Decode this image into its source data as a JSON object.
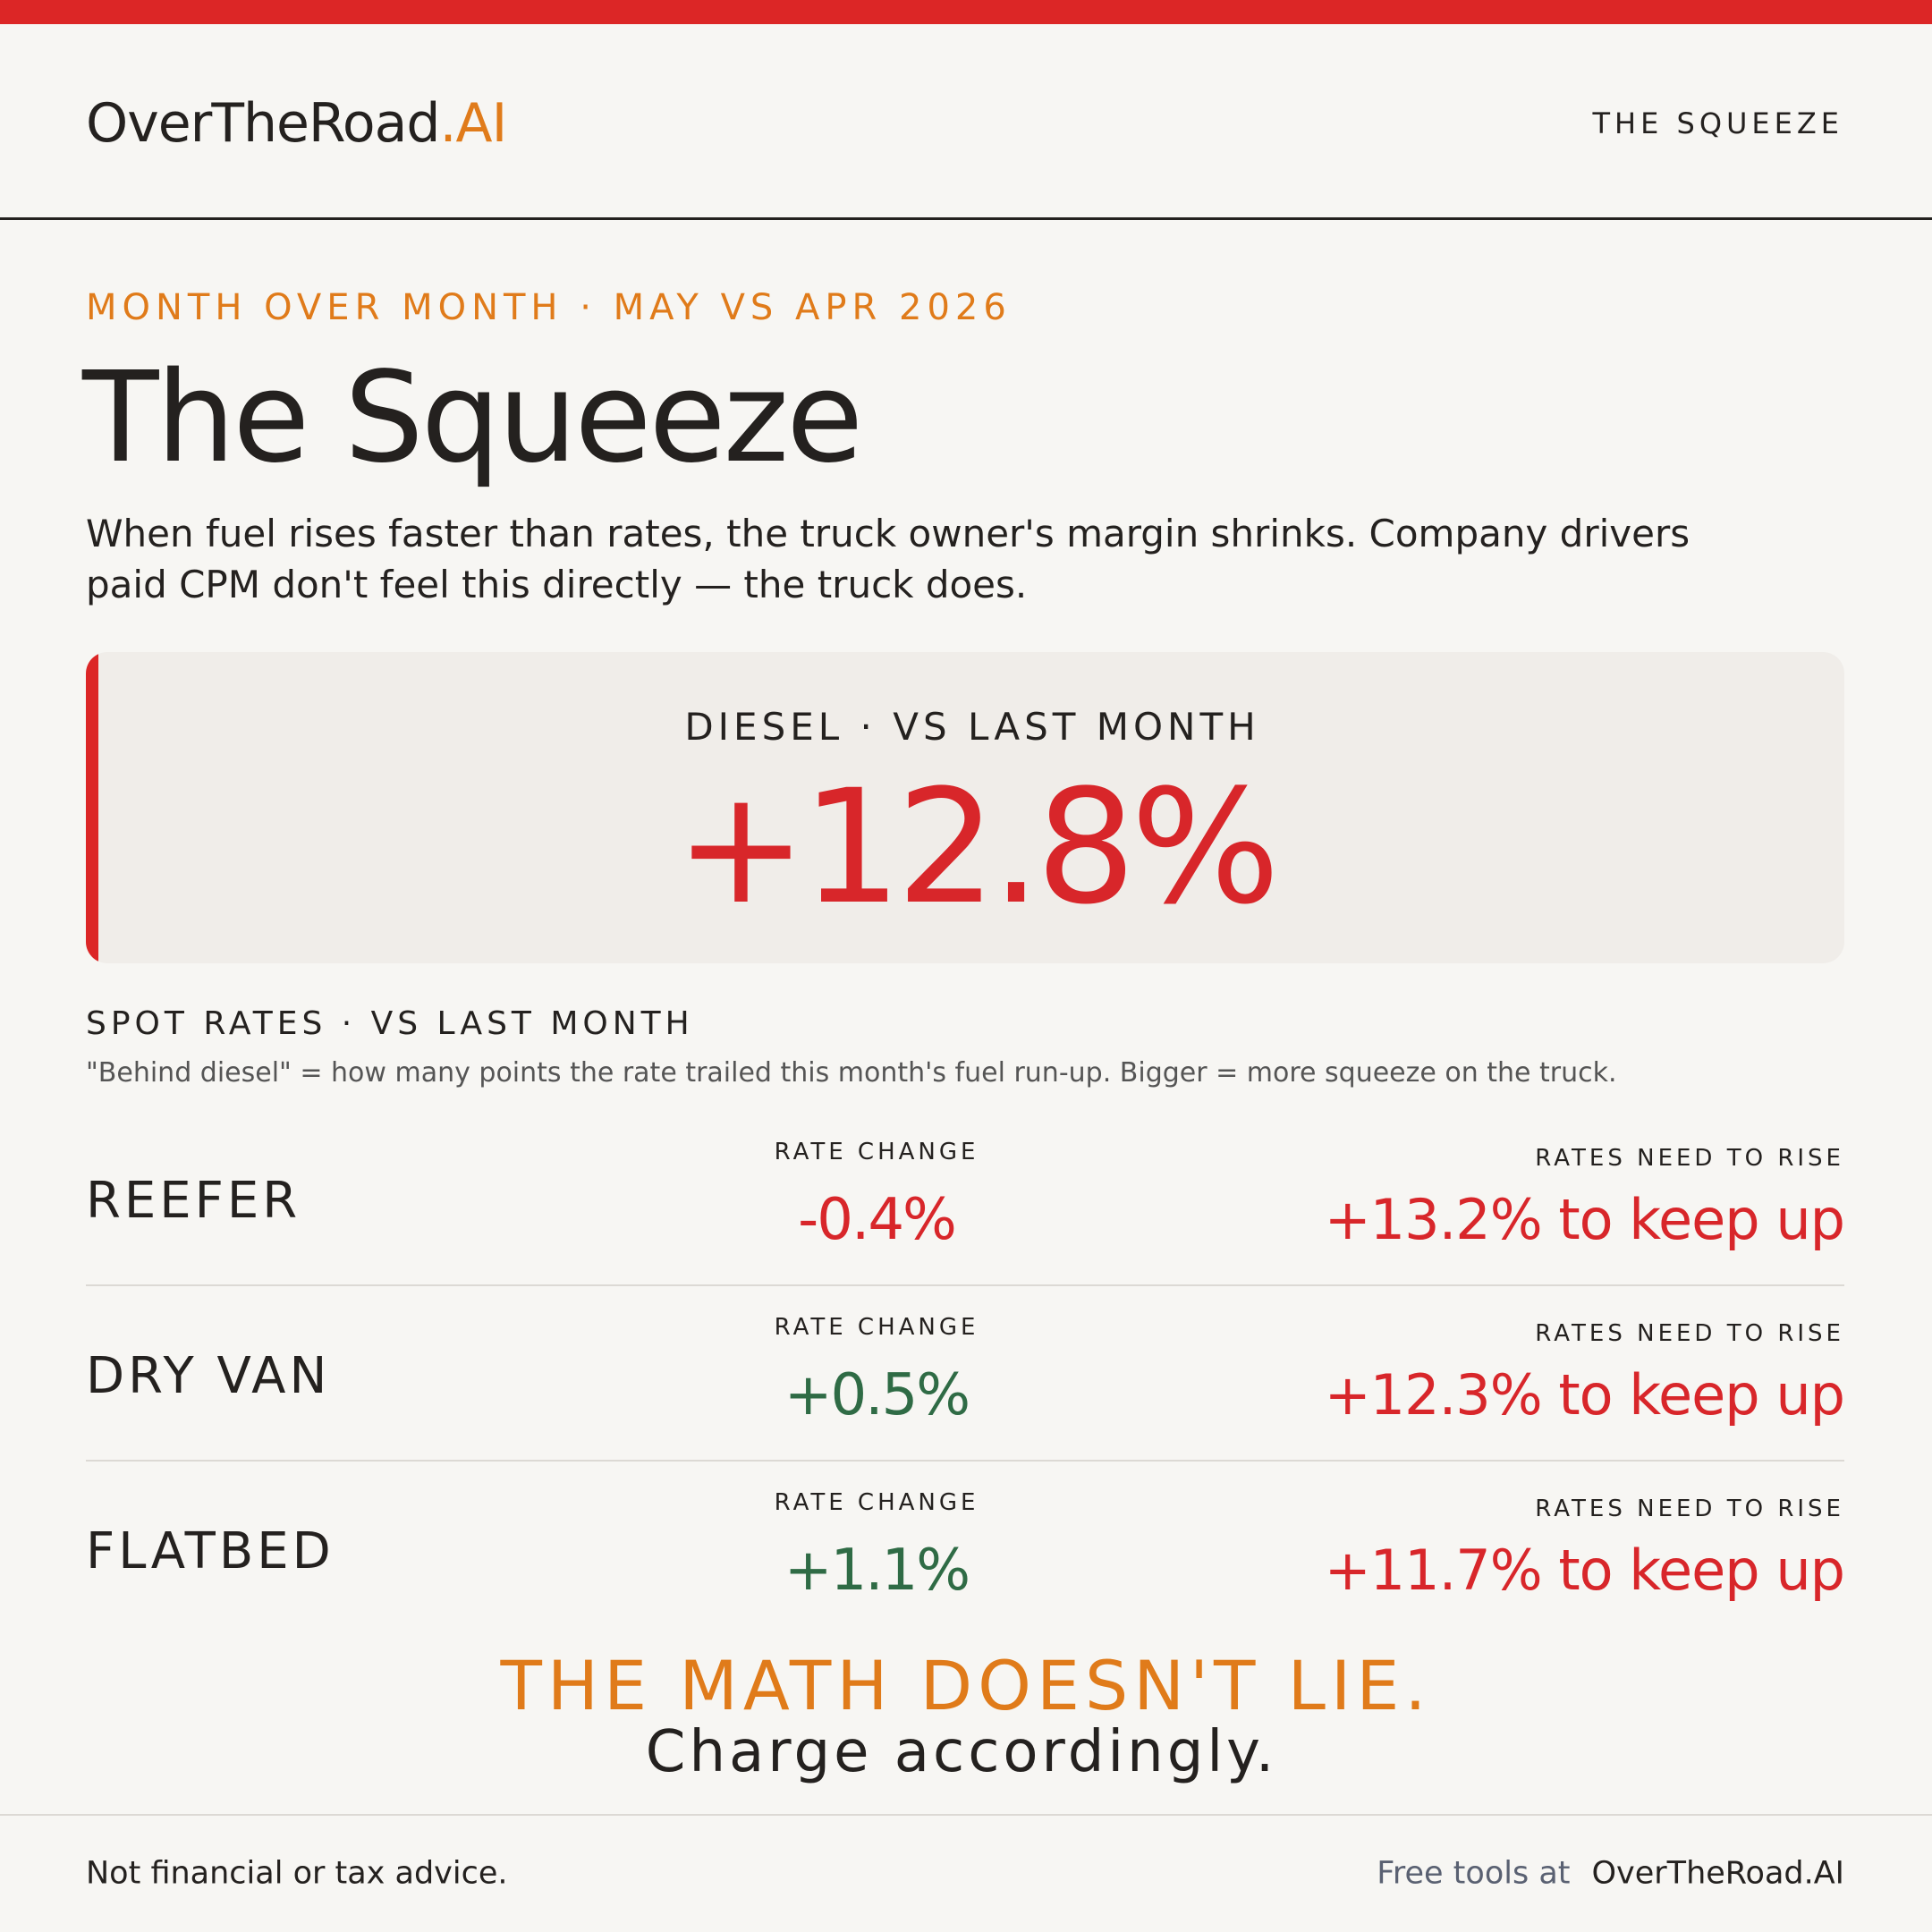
{
  "header": {
    "brand": "OverTheRoad",
    "brand_suffix": ".AI",
    "section": "THE SQUEEZE"
  },
  "kicker": "MONTH OVER MONTH · MAY VS APR 2026",
  "title": "The Squeeze",
  "description": "When fuel rises faster than rates, the truck owner's margin shrinks. Company drivers paid CPM don't feel this directly — the truck does.",
  "diesel": {
    "label": "DIESEL · VS LAST MONTH",
    "value": "+12.8%"
  },
  "spot_rates": {
    "label": "SPOT RATES · VS LAST MONTH",
    "note": "\"Behind diesel\" = how many points the rate trailed this month's fuel run-up. Bigger = more squeeze on the truck.",
    "rows": [
      {
        "name": "REEFER",
        "change_label": "RATE CHANGE",
        "change": "-0.4%",
        "change_color": "#d8262a",
        "need_label": "RATES NEED TO RISE",
        "need": "+13.2% to keep up"
      },
      {
        "name": "DRY VAN",
        "change_label": "RATE CHANGE",
        "change": "+0.5%",
        "change_color": "#2f6b45",
        "need_label": "RATES NEED TO RISE",
        "need": "+12.3% to keep up"
      },
      {
        "name": "FLATBED",
        "change_label": "RATE CHANGE",
        "change": "+1.1%",
        "change_color": "#2f6b45",
        "need_label": "RATES NEED TO RISE",
        "need": "+11.7% to keep up"
      }
    ]
  },
  "closer": {
    "headline": "THE MATH DOESN'T LIE.",
    "subline": "Charge accordingly."
  },
  "footer": {
    "disclaimer": "Not financial or tax advice.",
    "tools_label": "Free tools at",
    "tools_site": "OverTheRoad.AI"
  }
}
